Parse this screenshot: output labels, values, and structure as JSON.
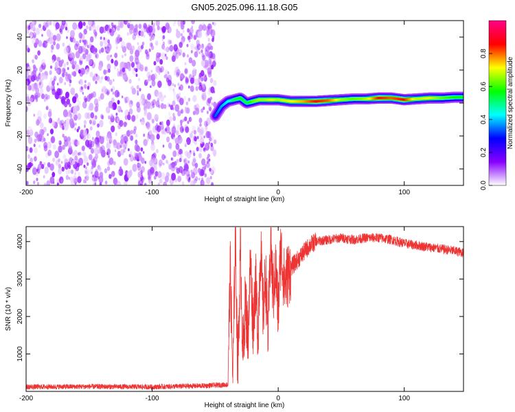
{
  "title": "GN05.2025.096.11.18.G05",
  "chart_data": [
    {
      "type": "heatmap",
      "xlabel": "Height of straight line (km)",
      "ylabel": "Frequency (Hz)",
      "xlim": [
        -200,
        147
      ],
      "ylim": [
        -50,
        50
      ],
      "xticks": [
        -200,
        -100,
        0,
        100
      ],
      "yticks": [
        -40,
        -20,
        0,
        20,
        40
      ],
      "colorbar": {
        "label": "Normalized spectral amplitude",
        "range": [
          0,
          1
        ],
        "ticks": [
          0.0,
          0.2,
          0.4,
          0.6,
          0.8
        ],
        "colors": [
          "#ffffff",
          "#8800ff",
          "#0000ff",
          "#00ffff",
          "#00ff00",
          "#ffff00",
          "#ff0000",
          "#ff0088"
        ]
      },
      "noise_region": {
        "x_range": [
          -200,
          -50
        ],
        "y_range": [
          -50,
          50
        ],
        "level_range": [
          0.02,
          0.14
        ]
      },
      "ridge": {
        "x": [
          -50,
          -45,
          -40,
          -35,
          -30,
          -25,
          -20,
          -15,
          -10,
          -5,
          0,
          10,
          20,
          30,
          40,
          50,
          60,
          70,
          80,
          90,
          100,
          110,
          120,
          130,
          140,
          147
        ],
        "frequency": [
          -8,
          -2,
          1,
          2,
          3,
          0,
          1,
          2,
          2,
          2,
          2,
          1,
          1,
          1,
          1.5,
          2,
          2.5,
          2.5,
          3,
          3,
          2,
          2.5,
          3,
          3,
          3.5,
          3.5
        ],
        "level": [
          0.35,
          0.4,
          0.45,
          0.55,
          0.6,
          0.55,
          0.65,
          0.7,
          0.7,
          0.75,
          0.7,
          0.75,
          0.8,
          0.9,
          0.85,
          0.7,
          0.65,
          0.7,
          0.9,
          0.85,
          0.9,
          0.7,
          0.75,
          0.65,
          0.6,
          0.6
        ]
      }
    },
    {
      "type": "line",
      "xlabel": "Height of straight line (km)",
      "ylabel": "SNR (10 * v/v)",
      "xlim": [
        -200,
        147
      ],
      "ylim": [
        0,
        4400
      ],
      "xticks": [
        -200,
        -100,
        0,
        100
      ],
      "yticks": [
        1000,
        2000,
        3000,
        4000
      ],
      "color": "#ee3333",
      "series": [
        {
          "x": [
            -200,
            -150,
            -100,
            -60,
            -40,
            -38,
            -36,
            -34,
            -32,
            -30,
            -28,
            -26,
            -24,
            -22,
            -20,
            -18,
            -16,
            -14,
            -12,
            -10,
            -8,
            -6,
            -4,
            -2,
            0,
            2,
            5,
            10,
            15,
            20,
            25,
            30,
            40,
            50,
            60,
            70,
            80,
            90,
            100,
            110,
            120,
            130,
            140,
            147
          ],
          "values": [
            120,
            130,
            120,
            150,
            180,
            3300,
            300,
            4200,
            500,
            3800,
            900,
            2500,
            1400,
            3500,
            1800,
            2900,
            1600,
            3900,
            2100,
            3100,
            1500,
            4000,
            2600,
            3300,
            2100,
            3800,
            2900,
            3300,
            3500,
            3700,
            3900,
            4000,
            4050,
            4100,
            4050,
            4100,
            4100,
            4050,
            3950,
            3900,
            3850,
            3800,
            3750,
            3700
          ]
        }
      ]
    }
  ]
}
